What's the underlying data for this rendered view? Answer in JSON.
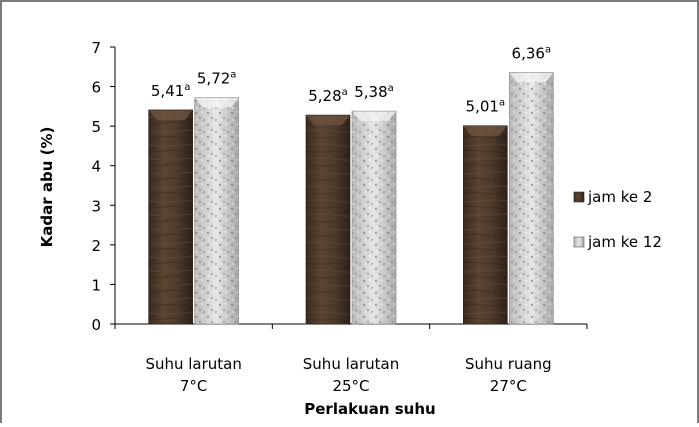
{
  "chart_data": {
    "type": "bar",
    "categories": [
      [
        "Suhu larutan",
        "7°C"
      ],
      [
        "Suhu larutan",
        "25°C"
      ],
      [
        "Suhu ruang",
        "27°C"
      ]
    ],
    "series": [
      {
        "name": "jam ke 2",
        "values": [
          5.41,
          5.28,
          5.01
        ],
        "labels": [
          "5,41",
          "5,28",
          "5,01"
        ],
        "superscripts": [
          "a",
          "a",
          "a"
        ],
        "color": "#4a3628"
      },
      {
        "name": "jam ke 12",
        "values": [
          5.72,
          5.38,
          6.36
        ],
        "labels": [
          "5,72",
          "5,38",
          "6,36"
        ],
        "superscripts": [
          "a",
          "a",
          "a"
        ],
        "color": "#d6d6d6"
      }
    ],
    "xlabel": "Perlakuan suhu",
    "ylabel": "Kadar abu (%)",
    "ylim": [
      0,
      7
    ],
    "yticks": [
      0,
      1,
      2,
      3,
      4,
      5,
      6,
      7
    ],
    "grid": false,
    "legend_position": "right"
  }
}
